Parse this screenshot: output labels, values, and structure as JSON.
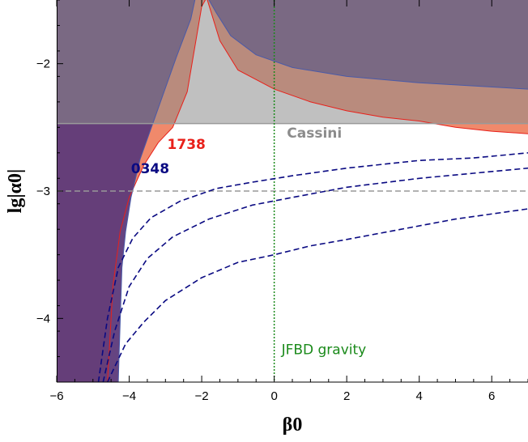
{
  "chart_data": {
    "type": "line",
    "xlabel": "β0",
    "ylabel": "lg|α0|",
    "xlim": [
      -6,
      7
    ],
    "ylim": [
      -4.5,
      -1.5
    ],
    "x_ticks": [
      {
        "value": -6,
        "label": "−6"
      },
      {
        "value": -4,
        "label": "−4"
      },
      {
        "value": -2,
        "label": "−2"
      },
      {
        "value": 0,
        "label": "0"
      },
      {
        "value": 2,
        "label": "2"
      },
      {
        "value": 4,
        "label": "4"
      },
      {
        "value": 6,
        "label": "6"
      }
    ],
    "y_ticks": [
      {
        "value": -2,
        "label": "−2"
      },
      {
        "value": -3,
        "label": "−3"
      },
      {
        "value": -4,
        "label": "−4"
      }
    ],
    "cassini_bound": -2.47,
    "reference_line_y": -3.0,
    "jfbd_line_x": 0,
    "annotations": {
      "cassini": "Cassini",
      "pulsar_1738": "1738",
      "pulsar_0348": "0348",
      "jfbd": "JFBD gravity"
    },
    "regions": {
      "psr1738_lower_boundary": [
        [
          -4.6,
          -4.5
        ],
        [
          -4.45,
          -3.75
        ],
        [
          -4.25,
          -3.32
        ],
        [
          -4.0,
          -3.05
        ],
        [
          -3.6,
          -2.8
        ],
        [
          -3.2,
          -2.62
        ],
        [
          -2.8,
          -2.5
        ],
        [
          -2.4,
          -2.22
        ],
        [
          -2.0,
          -1.55
        ],
        [
          -1.8,
          -1.45
        ]
      ],
      "psr1738_upper_boundary": [
        [
          -1.9,
          -1.45
        ],
        [
          -1.5,
          -1.82
        ],
        [
          -1.0,
          -2.05
        ],
        [
          0,
          -2.2
        ],
        [
          1,
          -2.3
        ],
        [
          2,
          -2.37
        ],
        [
          3,
          -2.42
        ],
        [
          4,
          -2.45
        ],
        [
          5,
          -2.5
        ],
        [
          6,
          -2.53
        ],
        [
          7,
          -2.55
        ]
      ],
      "psr0348_lower_boundary": [
        [
          -4.3,
          -4.5
        ],
        [
          -4.28,
          -4.3
        ],
        [
          -4.2,
          -3.6
        ],
        [
          -4.1,
          -3.32
        ],
        [
          -3.95,
          -3.05
        ],
        [
          -3.7,
          -2.75
        ],
        [
          -3.2,
          -2.35
        ],
        [
          -2.7,
          -1.95
        ],
        [
          -2.3,
          -1.65
        ],
        [
          -2.15,
          -1.45
        ]
      ],
      "psr0348_upper_boundary": [
        [
          -1.9,
          -1.45
        ],
        [
          -1.6,
          -1.6
        ],
        [
          -1.2,
          -1.78
        ],
        [
          -0.5,
          -1.93
        ],
        [
          0.5,
          -2.03
        ],
        [
          2,
          -2.1
        ],
        [
          4,
          -2.15
        ],
        [
          7,
          -2.2
        ]
      ]
    },
    "series": [
      {
        "values": [
          [
            -4.85,
            -4.5
          ],
          [
            -4.6,
            -4.0
          ],
          [
            -4.3,
            -3.6
          ],
          [
            -3.9,
            -3.37
          ],
          [
            -3.4,
            -3.21
          ],
          [
            -2.6,
            -3.08
          ],
          [
            -1.6,
            -2.98
          ],
          [
            -0.6,
            -2.93
          ],
          [
            0.5,
            -2.88
          ],
          [
            2.0,
            -2.82
          ],
          [
            4.0,
            -2.76
          ],
          [
            5.5,
            -2.74
          ],
          [
            7,
            -2.7
          ]
        ]
      },
      {
        "values": [
          [
            -4.72,
            -4.5
          ],
          [
            -4.4,
            -4.1
          ],
          [
            -4.0,
            -3.75
          ],
          [
            -3.5,
            -3.53
          ],
          [
            -2.8,
            -3.36
          ],
          [
            -1.8,
            -3.22
          ],
          [
            -0.6,
            -3.11
          ],
          [
            0.5,
            -3.05
          ],
          [
            2.0,
            -2.97
          ],
          [
            4.0,
            -2.9
          ],
          [
            5.5,
            -2.86
          ],
          [
            7,
            -2.82
          ]
        ]
      },
      {
        "values": [
          [
            -4.6,
            -4.5
          ],
          [
            -4.1,
            -4.2
          ],
          [
            -3.6,
            -4.03
          ],
          [
            -3.0,
            -3.86
          ],
          [
            -2.0,
            -3.68
          ],
          [
            -1.0,
            -3.56
          ],
          [
            0,
            -3.5
          ],
          [
            1.0,
            -3.43
          ],
          [
            2.0,
            -3.38
          ],
          [
            3.5,
            -3.3
          ],
          [
            5.0,
            -3.22
          ],
          [
            7,
            -3.14
          ]
        ]
      }
    ],
    "colors": {
      "cassini_region": "#8c8c8c",
      "psr1738_fill": "#f0896b",
      "psr1738_line": "#e8201a",
      "psr0348_fill": "#5d3a7a",
      "psr0348_line": "#4a5aa8",
      "dashed_curves": "#0a0a82",
      "reference_line": "#999999",
      "jfbd_line": "#1a8a1a",
      "cassini_text": "#8c8c8c",
      "label_1738": "#e8201a",
      "label_0348": "#0a0a82",
      "label_jfbd": "#1a8a1a"
    }
  }
}
